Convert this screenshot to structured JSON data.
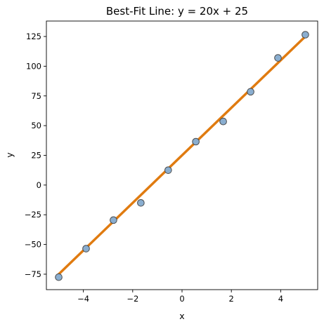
{
  "chart_data": {
    "type": "scatter",
    "title": "Best-Fit Line: y = 20x + 25",
    "xlabel": "x",
    "ylabel": "y",
    "xlim": [
      -5.5,
      5.5
    ],
    "ylim": [
      -88,
      138
    ],
    "xticks": [
      -4,
      -2,
      0,
      2,
      4
    ],
    "xtick_labels": [
      "−4",
      "−2",
      "0",
      "2",
      "4"
    ],
    "yticks": [
      -75,
      -50,
      -25,
      0,
      25,
      50,
      75,
      100,
      125
    ],
    "ytick_labels": [
      "−75",
      "−50",
      "−25",
      "0",
      "25",
      "50",
      "75",
      "100",
      "125"
    ],
    "grid": false,
    "series": [
      {
        "type": "scatter",
        "color": "#8aaed0",
        "edge_color": "#4c4c4c",
        "points": [
          {
            "x": -5.0,
            "y": -77.5
          },
          {
            "x": -3.89,
            "y": -53.5
          },
          {
            "x": -2.78,
            "y": -29.5
          },
          {
            "x": -1.67,
            "y": -15.0
          },
          {
            "x": -0.56,
            "y": 12.5
          },
          {
            "x": 0.56,
            "y": 36.5
          },
          {
            "x": 1.67,
            "y": 53.5
          },
          {
            "x": 2.78,
            "y": 78.5
          },
          {
            "x": 3.89,
            "y": 107.0
          },
          {
            "x": 5.0,
            "y": 126.5
          }
        ]
      },
      {
        "type": "line",
        "color": "#e07b10",
        "x": [
          -5.0,
          5.0
        ],
        "y": [
          -75.0,
          125.0
        ]
      }
    ]
  }
}
